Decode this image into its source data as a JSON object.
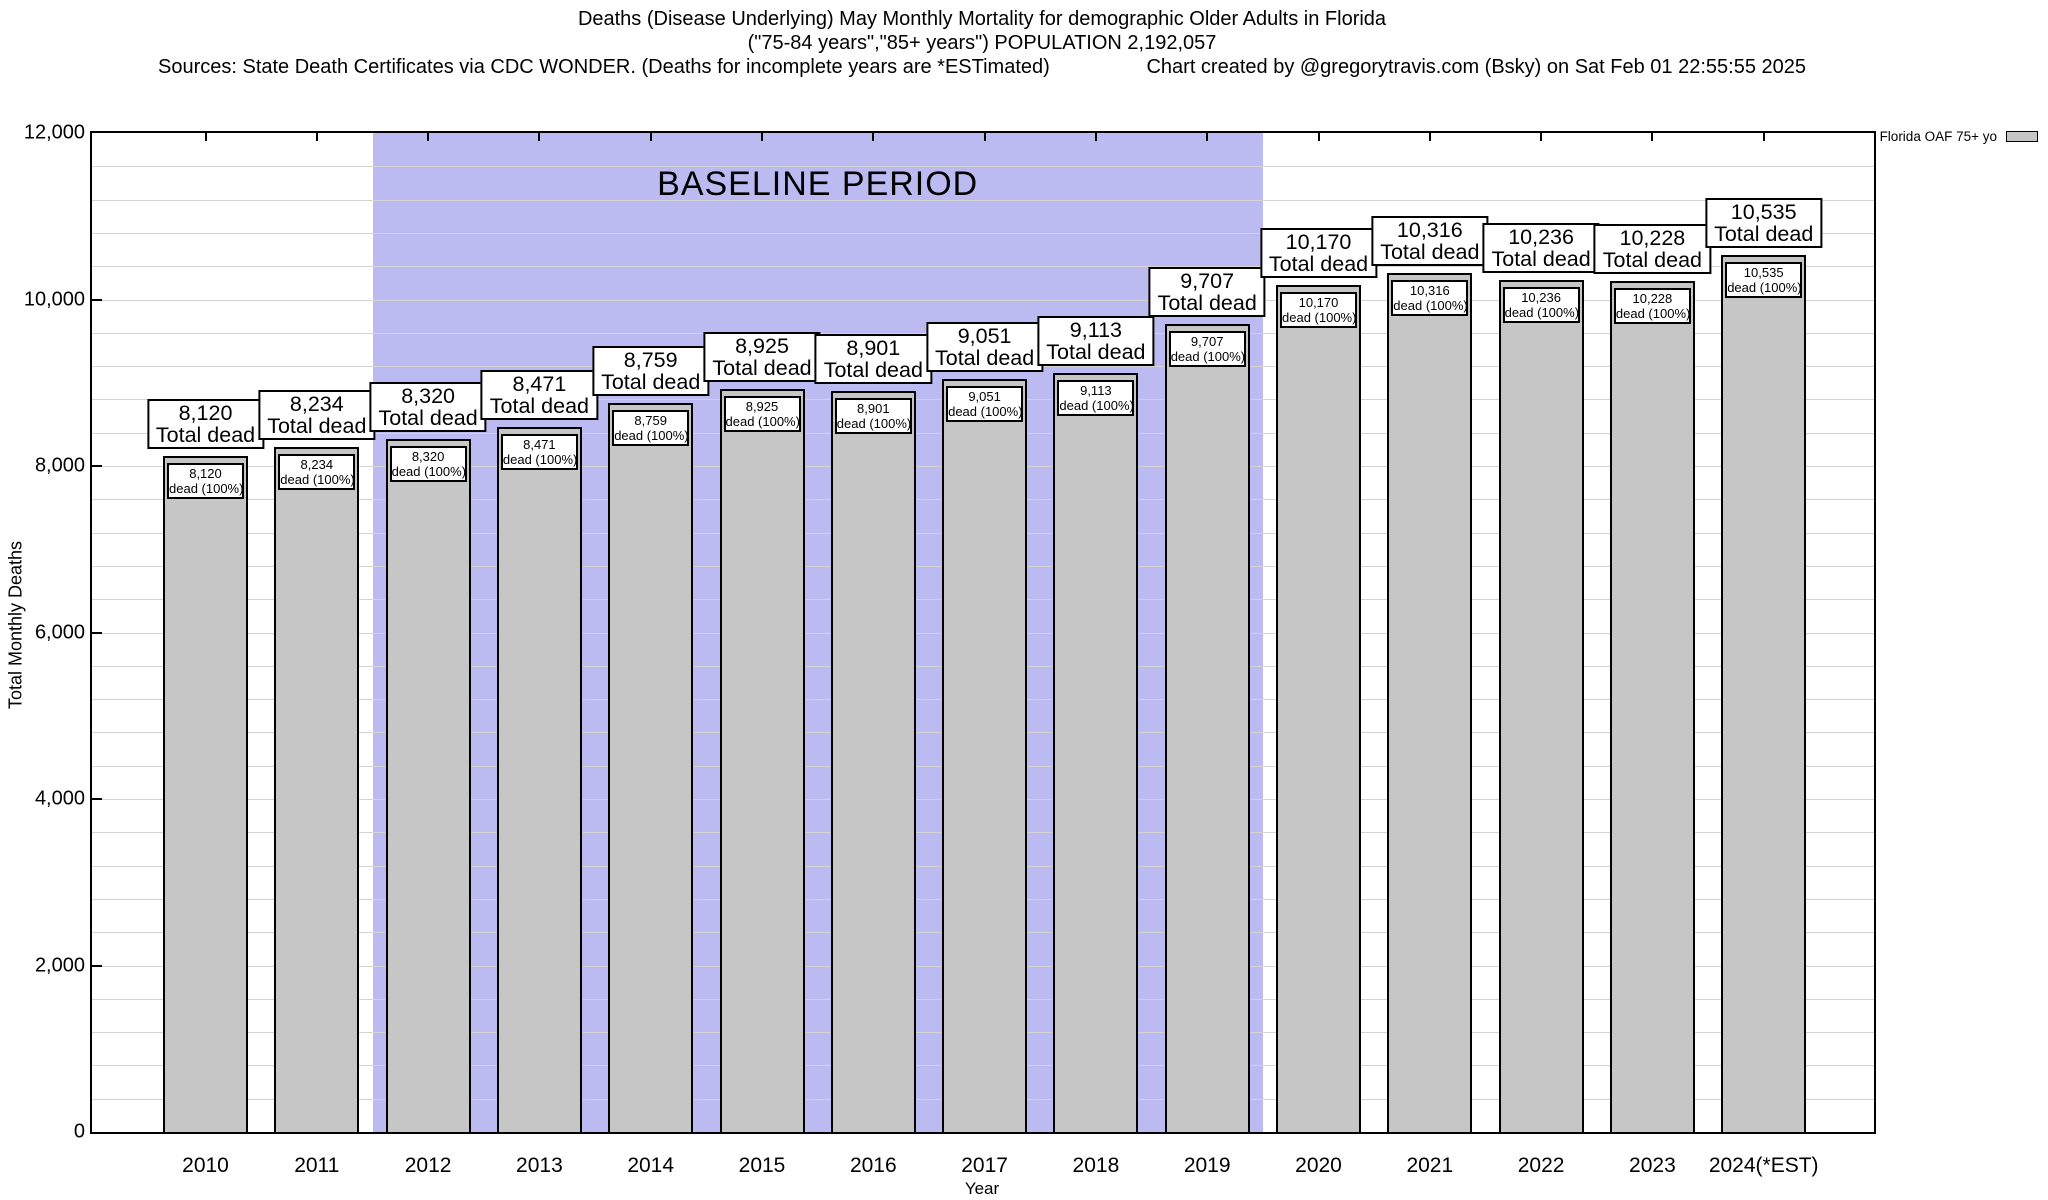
{
  "title": {
    "line1": "Deaths (Disease Underlying) May Monthly Mortality for demographic Older Adults in Florida",
    "line2": "(\"75-84 years\",\"85+ years\") POPULATION 2,192,057",
    "sources": "Sources: State Death Certificates via CDC WONDER. (Deaths for incomplete years are *ESTimated)",
    "credit": "Chart created by @gregorytravis.com (Bsky) on Sat Feb 01 22:55:55 2025"
  },
  "legend": {
    "label": "Florida OAF 75+ yo",
    "swatch_color": "#c6c6c6"
  },
  "chart_data": {
    "type": "bar",
    "title": "Deaths (Disease Underlying) May Monthly Mortality for demographic Older Adults in Florida",
    "xlabel": "Year",
    "ylabel": "Total Monthly Deaths",
    "ylim": [
      0,
      12000
    ],
    "grid": "on",
    "minor_gridline_interval": 400,
    "legend_position": "top-right-outside",
    "categories": [
      "2010",
      "2011",
      "2012",
      "2013",
      "2014",
      "2015",
      "2016",
      "2017",
      "2018",
      "2019",
      "2020",
      "2021",
      "2022",
      "2023",
      "2024(*EST)"
    ],
    "values": [
      8120,
      8234,
      8320,
      8471,
      8759,
      8925,
      8901,
      9051,
      9113,
      9707,
      10170,
      10316,
      10236,
      10228,
      10535
    ],
    "value_labels": [
      "8,120",
      "8,234",
      "8,320",
      "8,471",
      "8,759",
      "8,925",
      "8,901",
      "9,051",
      "9,113",
      "9,707",
      "10,170",
      "10,316",
      "10,236",
      "10,228",
      "10,535"
    ],
    "outer_label_suffix": "Total dead",
    "inner_label_suffix": "dead (100%)",
    "yticks": {
      "values": [
        0,
        2000,
        4000,
        6000,
        8000,
        10000,
        12000
      ],
      "labels": [
        "0",
        "2,000",
        "4,000",
        "6,000",
        "8,000",
        "10,000",
        "12,000"
      ]
    },
    "baseline_period": {
      "label": "BASELINE PERIOD",
      "start_category": "2012",
      "end_category": "2019"
    },
    "colors": {
      "bar_fill": "#c6c6c6",
      "baseline_band": "#bbbbf2",
      "gridline": "#d4d4d4"
    }
  }
}
